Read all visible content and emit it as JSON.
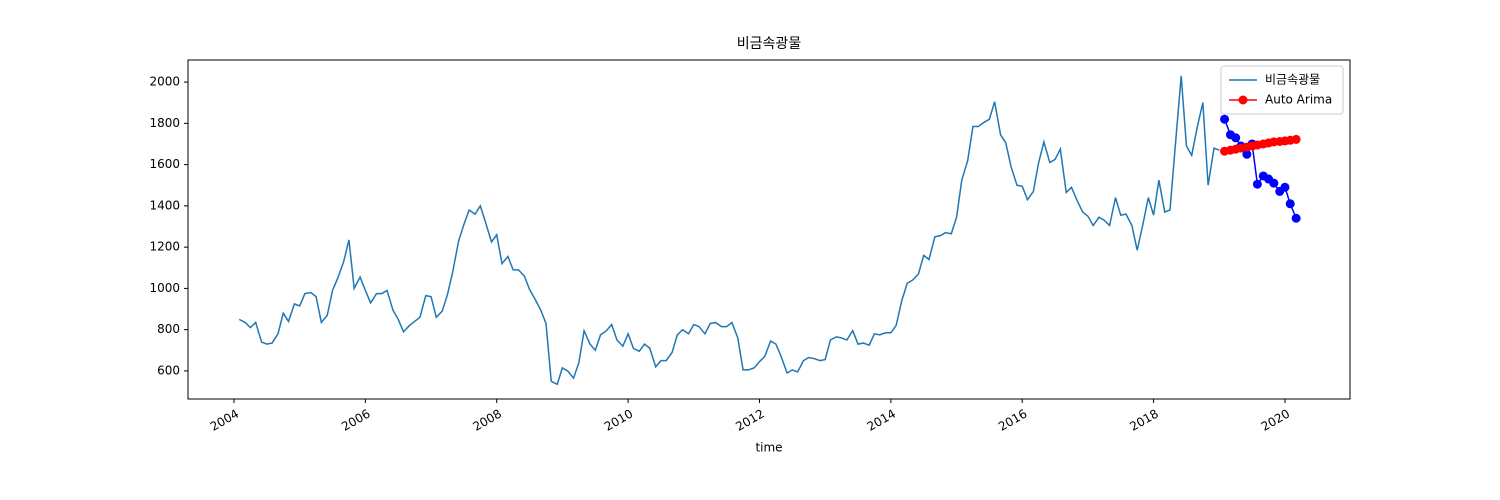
{
  "chart_data": {
    "type": "line",
    "title": "비금속광물",
    "xlabel": "time",
    "xlim": [
      2003.3,
      2020.99
    ],
    "xticks": [
      2004,
      2006,
      2008,
      2010,
      2012,
      2014,
      2016,
      2018,
      2020
    ],
    "ylim": [
      464,
      2107
    ],
    "yticks": [
      600,
      800,
      1000,
      1200,
      1400,
      1600,
      1800,
      2000
    ],
    "legend": "upper right",
    "series": [
      {
        "name": "비금속광물",
        "color": "#1f77b4",
        "markers": false,
        "x": [
          2004.08,
          2004.17,
          2004.25,
          2004.33,
          2004.42,
          2004.5,
          2004.58,
          2004.67,
          2004.75,
          2004.83,
          2004.92,
          2005,
          2005.08,
          2005.17,
          2005.25,
          2005.33,
          2005.42,
          2005.5,
          2005.58,
          2005.67,
          2005.75,
          2005.83,
          2005.92,
          2006,
          2006.08,
          2006.17,
          2006.25,
          2006.33,
          2006.42,
          2006.5,
          2006.58,
          2006.67,
          2006.75,
          2006.83,
          2006.92,
          2007,
          2007.08,
          2007.17,
          2007.25,
          2007.33,
          2007.42,
          2007.5,
          2007.58,
          2007.67,
          2007.75,
          2007.83,
          2007.92,
          2008,
          2008.08,
          2008.17,
          2008.25,
          2008.33,
          2008.42,
          2008.5,
          2008.58,
          2008.67,
          2008.75,
          2008.83,
          2008.92,
          2009,
          2009.08,
          2009.17,
          2009.25,
          2009.33,
          2009.42,
          2009.5,
          2009.58,
          2009.67,
          2009.75,
          2009.83,
          2009.92,
          2010,
          2010.08,
          2010.17,
          2010.25,
          2010.33,
          2010.42,
          2010.5,
          2010.58,
          2010.67,
          2010.75,
          2010.83,
          2010.92,
          2011,
          2011.08,
          2011.17,
          2011.25,
          2011.33,
          2011.42,
          2011.5,
          2011.58,
          2011.67,
          2011.75,
          2011.83,
          2011.92,
          2012,
          2012.08,
          2012.17,
          2012.25,
          2012.33,
          2012.42,
          2012.5,
          2012.58,
          2012.67,
          2012.75,
          2012.83,
          2012.92,
          2013,
          2013.08,
          2013.17,
          2013.25,
          2013.33,
          2013.42,
          2013.5,
          2013.58,
          2013.67,
          2013.75,
          2013.83,
          2013.92,
          2014,
          2014.08,
          2014.17,
          2014.25,
          2014.33,
          2014.42,
          2014.5,
          2014.58,
          2014.67,
          2014.75,
          2014.83,
          2014.92,
          2015,
          2015.08,
          2015.17,
          2015.25,
          2015.33,
          2015.42,
          2015.5,
          2015.58,
          2015.67,
          2015.75,
          2015.83,
          2015.92,
          2016,
          2016.08,
          2016.17,
          2016.25,
          2016.33,
          2016.42,
          2016.5,
          2016.58,
          2016.67,
          2016.75,
          2016.83,
          2016.92,
          2017,
          2017.08,
          2017.17,
          2017.25,
          2017.33,
          2017.42,
          2017.5,
          2017.58,
          2017.67,
          2017.75,
          2017.83,
          2017.92,
          2018,
          2018.08,
          2018.17,
          2018.25,
          2018.33,
          2018.42,
          2018.5,
          2018.58,
          2018.67,
          2018.75,
          2018.83,
          2018.92,
          2019
        ],
        "values": [
          850,
          835,
          810,
          835,
          740,
          730,
          735,
          780,
          880,
          840,
          925,
          915,
          975,
          980,
          960,
          835,
          870,
          990,
          1050,
          1130,
          1235,
          1000,
          1055,
          990,
          930,
          975,
          975,
          990,
          895,
          850,
          790,
          820,
          840,
          860,
          965,
          960,
          860,
          890,
          970,
          1080,
          1230,
          1310,
          1380,
          1360,
          1400,
          1320,
          1225,
          1260,
          1120,
          1155,
          1090,
          1090,
          1060,
          995,
          950,
          895,
          830,
          550,
          535,
          615,
          600,
          565,
          640,
          795,
          730,
          700,
          775,
          795,
          825,
          750,
          720,
          780,
          710,
          695,
          730,
          710,
          620,
          650,
          650,
          690,
          775,
          800,
          780,
          825,
          815,
          780,
          830,
          835,
          815,
          815,
          835,
          760,
          605,
          605,
          615,
          645,
          670,
          745,
          730,
          670,
          590,
          605,
          595,
          650,
          665,
          660,
          650,
          655,
          750,
          765,
          760,
          750,
          795,
          730,
          735,
          725,
          780,
          775,
          785,
          785,
          820,
          945,
          1025,
          1040,
          1070,
          1160,
          1140,
          1250,
          1255,
          1270,
          1265,
          1345,
          1525,
          1620,
          1785,
          1785,
          1805,
          1820,
          1905,
          1745,
          1705,
          1590,
          1500,
          1495,
          1430,
          1470,
          1610,
          1710,
          1610,
          1625,
          1675,
          1465,
          1490,
          1430,
          1370,
          1350,
          1305,
          1345,
          1330,
          1305,
          1440,
          1355,
          1360,
          1305,
          1185,
          1300,
          1440,
          1355,
          1525,
          1370,
          1380,
          1690,
          2030,
          1690,
          1645,
          1790,
          1900,
          1500,
          1680,
          1670
        ]
      },
      {
        "color": "#0000ff",
        "markers": true,
        "x": [
          2019.08,
          2019.17,
          2019.25,
          2019.33,
          2019.42,
          2019.5,
          2019.58,
          2019.67,
          2019.75,
          2019.83,
          2019.92,
          2020,
          2020.08,
          2020.17
        ],
        "values": [
          1820,
          1745,
          1730,
          1690,
          1650,
          1700,
          1505,
          1545,
          1530,
          1510,
          1470,
          1490,
          1410,
          1340
        ]
      },
      {
        "name": "Auto Arima",
        "color": "#ff0000",
        "markers": true,
        "x": [
          2019.08,
          2019.17,
          2019.25,
          2019.33,
          2019.42,
          2019.5,
          2019.58,
          2019.67,
          2019.75,
          2019.83,
          2019.92,
          2020,
          2020.08,
          2020.17
        ],
        "values": [
          1665,
          1670,
          1675,
          1680,
          1685,
          1690,
          1695,
          1700,
          1705,
          1710,
          1712,
          1715,
          1718,
          1722
        ]
      }
    ]
  }
}
